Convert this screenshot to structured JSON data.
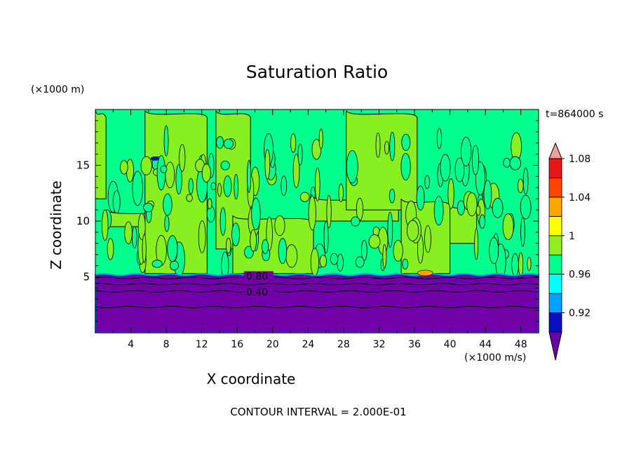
{
  "chart_data": {
    "type": "heatmap",
    "title": "Saturation Ratio",
    "xlabel": "X coordinate",
    "ylabel": "Z coordinate",
    "x_unit": "(×1000 m/s)",
    "z_unit": "(×1000 m)",
    "time_label": "t=864000 s",
    "footer": "CONTOUR INTERVAL = 2.000E-01",
    "xlim": [
      0,
      50
    ],
    "ylim": [
      0,
      20
    ],
    "x_ticks": [
      "4",
      "8",
      "12",
      "16",
      "20",
      "24",
      "28",
      "32",
      "36",
      "40",
      "44",
      "48"
    ],
    "y_ticks": [
      "5",
      "10",
      "15"
    ],
    "contour_labels": [
      {
        "text": "0.80",
        "x": 17,
        "z": 5.0
      },
      {
        "text": "0.40",
        "x": 17,
        "z": 3.6
      }
    ],
    "colorbar": {
      "labels": [
        "0.92",
        "0.96",
        "1",
        "1.04",
        "1.08"
      ],
      "colors": [
        "#6a00aa",
        "#0a10c0",
        "#00a0ff",
        "#00ffff",
        "#00ff8c",
        "#90ee20",
        "#ffff00",
        "#ffa500",
        "#ff4400",
        "#e81818",
        "#f0a0a0"
      ]
    },
    "fill_colors": {
      "dry_layer": "#7000a8",
      "near_one": "#00ff8c",
      "above_one": "#88f020",
      "supersat_spot": "#ffa500"
    }
  }
}
